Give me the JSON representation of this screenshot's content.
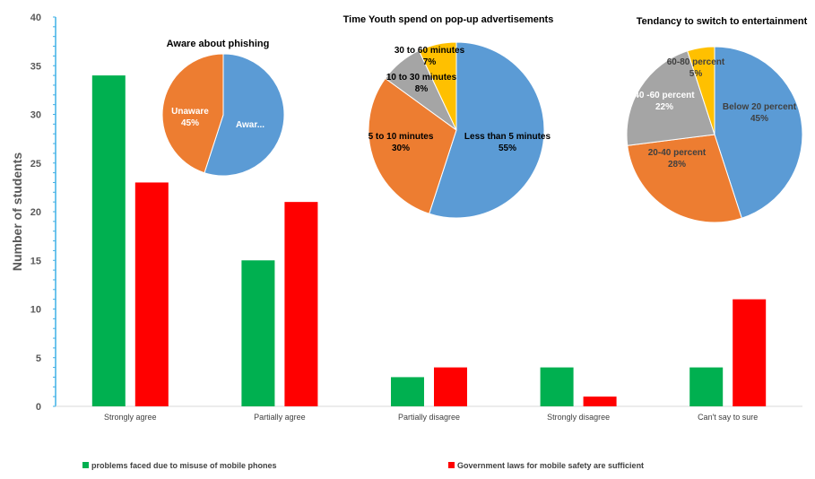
{
  "chart_data": [
    {
      "type": "bar",
      "categories": [
        "Strongly agree",
        "Partially agree",
        "Partially disagree",
        "Strongly disagree",
        "Can't say to sure"
      ],
      "series": [
        {
          "name": "problems faced due to misuse of mobile phones",
          "values": [
            34,
            15,
            3,
            4,
            4
          ],
          "color": "#00b050"
        },
        {
          "name": "Government laws for mobile safety are sufficient",
          "values": [
            23,
            21,
            4,
            1,
            11
          ],
          "color": "#ff0000"
        }
      ],
      "ylabel": "Number of students",
      "ylim": [
        0,
        40
      ],
      "yticks": [
        0,
        5,
        10,
        15,
        20,
        25,
        30,
        35,
        40
      ],
      "legend_position": "bottom",
      "grid": false
    },
    {
      "type": "pie",
      "title": "Aware about phishing",
      "slices": [
        {
          "label": "Awar...",
          "percent": 55,
          "pct_label": "",
          "color": "#5b9bd5"
        },
        {
          "label": "Unaware",
          "percent": 45,
          "pct_label": "45%",
          "color": "#ed7d31"
        }
      ]
    },
    {
      "type": "pie",
      "title": "Time Youth spend on pop-up advertisements",
      "slices": [
        {
          "label": "Less than 5 minutes",
          "percent": 55,
          "pct_label": "55%",
          "color": "#5b9bd5"
        },
        {
          "label": "5 to 10 minutes",
          "percent": 30,
          "pct_label": "30%",
          "color": "#ed7d31"
        },
        {
          "label": "10 to 30 minutes",
          "percent": 8,
          "pct_label": "8%",
          "color": "#a5a5a5"
        },
        {
          "label": "30 to 60 minutes",
          "percent": 7,
          "pct_label": "7%",
          "color": "#ffc000"
        }
      ]
    },
    {
      "type": "pie",
      "title": "Tendancy to switch to entertainment",
      "slices": [
        {
          "label": "Below 20 percent",
          "percent": 45,
          "pct_label": "45%",
          "color": "#5b9bd5"
        },
        {
          "label": "20-40 percent",
          "percent": 28,
          "pct_label": "28%",
          "color": "#ed7d31"
        },
        {
          "label": "40 -60 percent",
          "percent": 22,
          "pct_label": "22%",
          "color": "#a5a5a5"
        },
        {
          "label": "60-80 percent",
          "percent": 5,
          "pct_label": "5%",
          "color": "#ffc000"
        }
      ]
    }
  ]
}
